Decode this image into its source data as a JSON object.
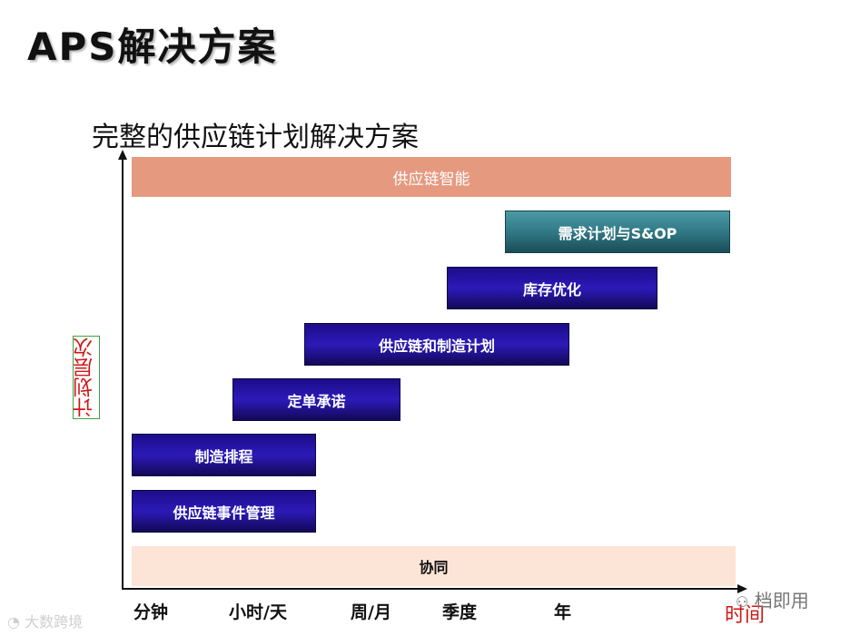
{
  "slide": {
    "title": "APS解决方案",
    "subtitle": "完整的供应链计划解决方案"
  },
  "diagram": {
    "y_axis_label": "计划层次",
    "x_axis_label": "时间",
    "x_ticks": [
      "分钟",
      "小时/天",
      "周/月",
      "季度",
      "年"
    ],
    "bars": {
      "intelligence": "供应链智能",
      "demand": "需求计划与S&OP",
      "inventory": "库存优化",
      "supply": "供应链和制造计划",
      "promise": "定单承诺",
      "scheduling": "制造排程",
      "event": "供应链事件管理",
      "collaboration": "协同"
    },
    "colors": {
      "intelligence_bar": "#e59a80",
      "collaboration_bar": "#fce4d6",
      "purple_bar": "#2a1aa8",
      "teal_bar": "#2f7582",
      "axis_label": "#d01717"
    }
  },
  "watermarks": {
    "left": "大数跨境",
    "right": "档即用"
  }
}
